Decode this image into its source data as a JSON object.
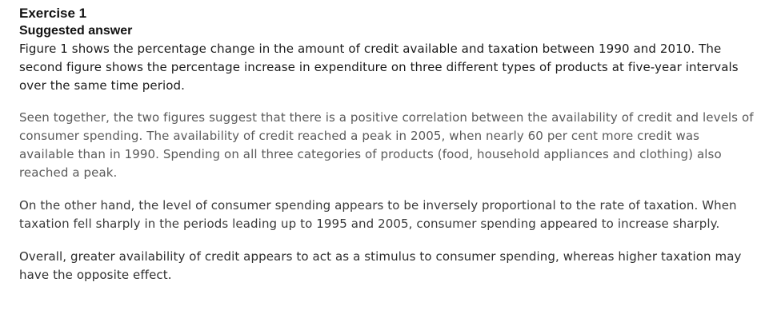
{
  "exercise": {
    "title": "Exercise 1",
    "subtitle": "Suggested answer"
  },
  "paragraphs": [
    "Figure 1 shows the percentage change in the amount of credit available and taxation between 1990 and 2010. The second figure shows the percentage increase in expenditure on three different types of products at five-year intervals over the same time period.",
    "Seen together, the two figures suggest that there is a positive correlation between the availability of credit and levels of consumer spending. The availability of credit reached a peak in 2005, when nearly 60 per cent more credit was available than in 1990. Spending on all three categories of products (food, household appliances and clothing) also reached a peak.",
    "On the other hand, the level of consumer spending appears to be inversely proportional to the rate of taxation. When taxation fell sharply in the periods leading up to 1995 and 2005, consumer spending appeared to increase sharply.",
    "Overall, greater availability of credit appears to act as a stimulus to consumer spending, whereas higher taxation may have the opposite effect."
  ]
}
